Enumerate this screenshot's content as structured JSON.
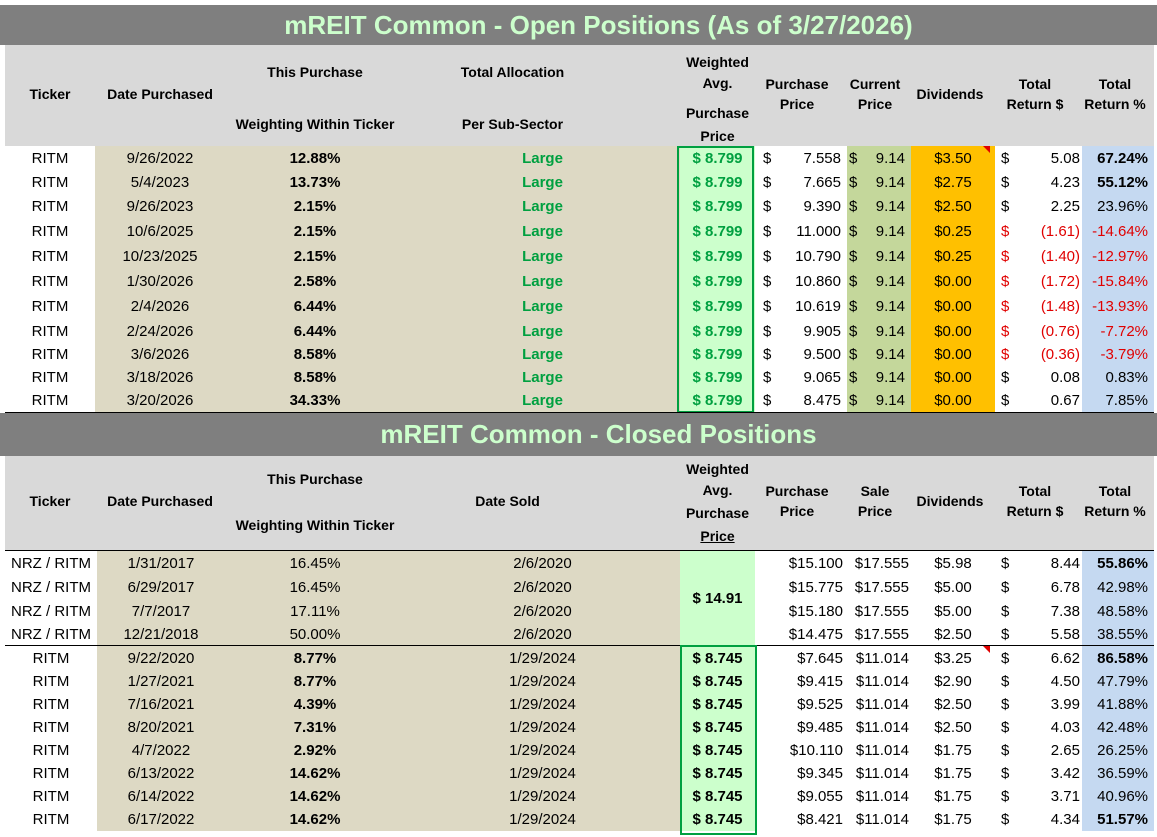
{
  "open": {
    "title": "mREIT Common - Open Positions (As of 3/27/2026)",
    "headers": {
      "ticker": "Ticker",
      "date_purchased": "Date Purchased",
      "this_purchase": "This Purchase",
      "weighting": "Weighting Within Ticker",
      "total_allocation": "Total Allocation",
      "per_sub_sector": "Per Sub-Sector",
      "weighted_avg_1": "Weighted",
      "weighted_avg_2": "Avg.",
      "weighted_avg_3": "Purchase",
      "weighted_avg_4": "Price",
      "purchase_price_1": "Purchase",
      "purchase_price_2": "Price",
      "current_price_1": "Current",
      "current_price_2": "Price",
      "dividends": "Dividends",
      "total_return_d_1": "Total",
      "total_return_d_2": "Return $",
      "total_return_p_1": "Total",
      "total_return_p_2": "Return %"
    },
    "rows": [
      {
        "ticker": "RITM",
        "date": "9/26/2022",
        "weight": "12.88%",
        "alloc": "Large",
        "wavg": "$ 8.799",
        "pp": "7.558",
        "cp": "9.14",
        "div": "$3.50",
        "tr": "5.08",
        "tp": "67.24%"
      },
      {
        "ticker": "RITM",
        "date": "5/4/2023",
        "weight": "13.73%",
        "alloc": "Large",
        "wavg": "$ 8.799",
        "pp": "7.665",
        "cp": "9.14",
        "div": "$2.75",
        "tr": "4.23",
        "tp": "55.12%"
      },
      {
        "ticker": "RITM",
        "date": "9/26/2023",
        "weight": "2.15%",
        "alloc": "Large",
        "wavg": "$ 8.799",
        "pp": "9.390",
        "cp": "9.14",
        "div": "$2.50",
        "tr": "2.25",
        "tp": "23.96%"
      },
      {
        "ticker": "RITM",
        "date": "10/6/2025",
        "weight": "2.15%",
        "alloc": "Large",
        "wavg": "$ 8.799",
        "pp": "11.000",
        "cp": "9.14",
        "div": "$0.25",
        "tr": "(1.61)",
        "tp": "-14.64%"
      },
      {
        "ticker": "RITM",
        "date": "10/23/2025",
        "weight": "2.15%",
        "alloc": "Large",
        "wavg": "$ 8.799",
        "pp": "10.790",
        "cp": "9.14",
        "div": "$0.25",
        "tr": "(1.40)",
        "tp": "-12.97%"
      },
      {
        "ticker": "RITM",
        "date": "1/30/2026",
        "weight": "2.58%",
        "alloc": "Large",
        "wavg": "$ 8.799",
        "pp": "10.860",
        "cp": "9.14",
        "div": "$0.00",
        "tr": "(1.72)",
        "tp": "-15.84%"
      },
      {
        "ticker": "RITM",
        "date": "2/4/2026",
        "weight": "6.44%",
        "alloc": "Large",
        "wavg": "$ 8.799",
        "pp": "10.619",
        "cp": "9.14",
        "div": "$0.00",
        "tr": "(1.48)",
        "tp": "-13.93%"
      },
      {
        "ticker": "RITM",
        "date": "2/24/2026",
        "weight": "6.44%",
        "alloc": "Large",
        "wavg": "$ 8.799",
        "pp": "9.905",
        "cp": "9.14",
        "div": "$0.00",
        "tr": "(0.76)",
        "tp": "-7.72%"
      },
      {
        "ticker": "RITM",
        "date": "3/6/2026",
        "weight": "8.58%",
        "alloc": "Large",
        "wavg": "$ 8.799",
        "pp": "9.500",
        "cp": "9.14",
        "div": "$0.00",
        "tr": "(0.36)",
        "tp": "-3.79%"
      },
      {
        "ticker": "RITM",
        "date": "3/18/2026",
        "weight": "8.58%",
        "alloc": "Large",
        "wavg": "$ 8.799",
        "pp": "9.065",
        "cp": "9.14",
        "div": "$0.00",
        "tr": "0.08",
        "tp": "0.83%"
      },
      {
        "ticker": "RITM",
        "date": "3/20/2026",
        "weight": "34.33%",
        "alloc": "Large",
        "wavg": "$ 8.799",
        "pp": "8.475",
        "cp": "9.14",
        "div": "$0.00",
        "tr": "0.67",
        "tp": "7.85%"
      }
    ]
  },
  "closed": {
    "title": "mREIT Common - Closed Positions",
    "headers": {
      "ticker": "Ticker",
      "date_purchased": "Date Purchased",
      "this_purchase": "This Purchase",
      "weighting": "Weighting Within Ticker",
      "date_sold": "Date Sold",
      "weighted_avg_1": "Weighted",
      "weighted_avg_2": "Avg.",
      "weighted_avg_3": "Purchase",
      "weighted_avg_4": "Price",
      "purchase_price_1": "Purchase",
      "purchase_price_2": "Price",
      "sale_price_1": "Sale",
      "sale_price_2": "Price",
      "dividends": "Dividends",
      "total_return_d_1": "Total",
      "total_return_d_2": "Return $",
      "total_return_p_1": "Total",
      "total_return_p_2": "Return %"
    },
    "nrz_wavg": "$ 14.91",
    "rows": [
      {
        "ticker": "NRZ / RITM",
        "date": "1/31/2017",
        "weight": "16.45%",
        "sold": "2/6/2020",
        "wavg": "",
        "pp": "$15.100",
        "sp": "$17.555",
        "div": "$5.98",
        "tr": "8.44",
        "tp": "55.86%"
      },
      {
        "ticker": "NRZ / RITM",
        "date": "6/29/2017",
        "weight": "16.45%",
        "sold": "2/6/2020",
        "wavg": "",
        "pp": "$15.775",
        "sp": "$17.555",
        "div": "$5.00",
        "tr": "6.78",
        "tp": "42.98%"
      },
      {
        "ticker": "NRZ / RITM",
        "date": "7/7/2017",
        "weight": "17.11%",
        "sold": "2/6/2020",
        "wavg": "",
        "pp": "$15.180",
        "sp": "$17.555",
        "div": "$5.00",
        "tr": "7.38",
        "tp": "48.58%"
      },
      {
        "ticker": "NRZ / RITM",
        "date": "12/21/2018",
        "weight": "50.00%",
        "sold": "2/6/2020",
        "wavg": "",
        "pp": "$14.475",
        "sp": "$17.555",
        "div": "$2.50",
        "tr": "5.58",
        "tp": "38.55%"
      },
      {
        "ticker": "RITM",
        "date": "9/22/2020",
        "weight": "8.77%",
        "sold": "1/29/2024",
        "wavg": "$ 8.745",
        "pp": "$7.645",
        "sp": "$11.014",
        "div": "$3.25",
        "tr": "6.62",
        "tp": "86.58%"
      },
      {
        "ticker": "RITM",
        "date": "1/27/2021",
        "weight": "8.77%",
        "sold": "1/29/2024",
        "wavg": "$ 8.745",
        "pp": "$9.415",
        "sp": "$11.014",
        "div": "$2.90",
        "tr": "4.50",
        "tp": "47.79%"
      },
      {
        "ticker": "RITM",
        "date": "7/16/2021",
        "weight": "4.39%",
        "sold": "1/29/2024",
        "wavg": "$ 8.745",
        "pp": "$9.525",
        "sp": "$11.014",
        "div": "$2.50",
        "tr": "3.99",
        "tp": "41.88%"
      },
      {
        "ticker": "RITM",
        "date": "8/20/2021",
        "weight": "7.31%",
        "sold": "1/29/2024",
        "wavg": "$ 8.745",
        "pp": "$9.485",
        "sp": "$11.014",
        "div": "$2.50",
        "tr": "4.03",
        "tp": "42.48%"
      },
      {
        "ticker": "RITM",
        "date": "4/7/2022",
        "weight": "2.92%",
        "sold": "1/29/2024",
        "wavg": "$ 8.745",
        "pp": "$10.110",
        "sp": "$11.014",
        "div": "$1.75",
        "tr": "2.65",
        "tp": "26.25%"
      },
      {
        "ticker": "RITM",
        "date": "6/13/2022",
        "weight": "14.62%",
        "sold": "1/29/2024",
        "wavg": "$ 8.745",
        "pp": "$9.345",
        "sp": "$11.014",
        "div": "$1.75",
        "tr": "3.42",
        "tp": "36.59%"
      },
      {
        "ticker": "RITM",
        "date": "6/14/2022",
        "weight": "14.62%",
        "sold": "1/29/2024",
        "wavg": "$ 8.745",
        "pp": "$9.055",
        "sp": "$11.014",
        "div": "$1.75",
        "tr": "3.71",
        "tp": "40.96%"
      },
      {
        "ticker": "RITM",
        "date": "6/17/2022",
        "weight": "14.62%",
        "sold": "1/29/2024",
        "wavg": "$ 8.745",
        "pp": "$8.421",
        "sp": "$11.014",
        "div": "$1.75",
        "tr": "4.34",
        "tp": "51.57%"
      }
    ]
  },
  "colors": {
    "title_bar": "#7f7f7f",
    "title_text": "#ccffcc",
    "tan": "#ddd9c4",
    "green_text": "#00a040",
    "current_price": "#c4d79b",
    "dividends": "#ffc000",
    "return_pct": "#c5d9f1",
    "negative": "#e00000"
  }
}
